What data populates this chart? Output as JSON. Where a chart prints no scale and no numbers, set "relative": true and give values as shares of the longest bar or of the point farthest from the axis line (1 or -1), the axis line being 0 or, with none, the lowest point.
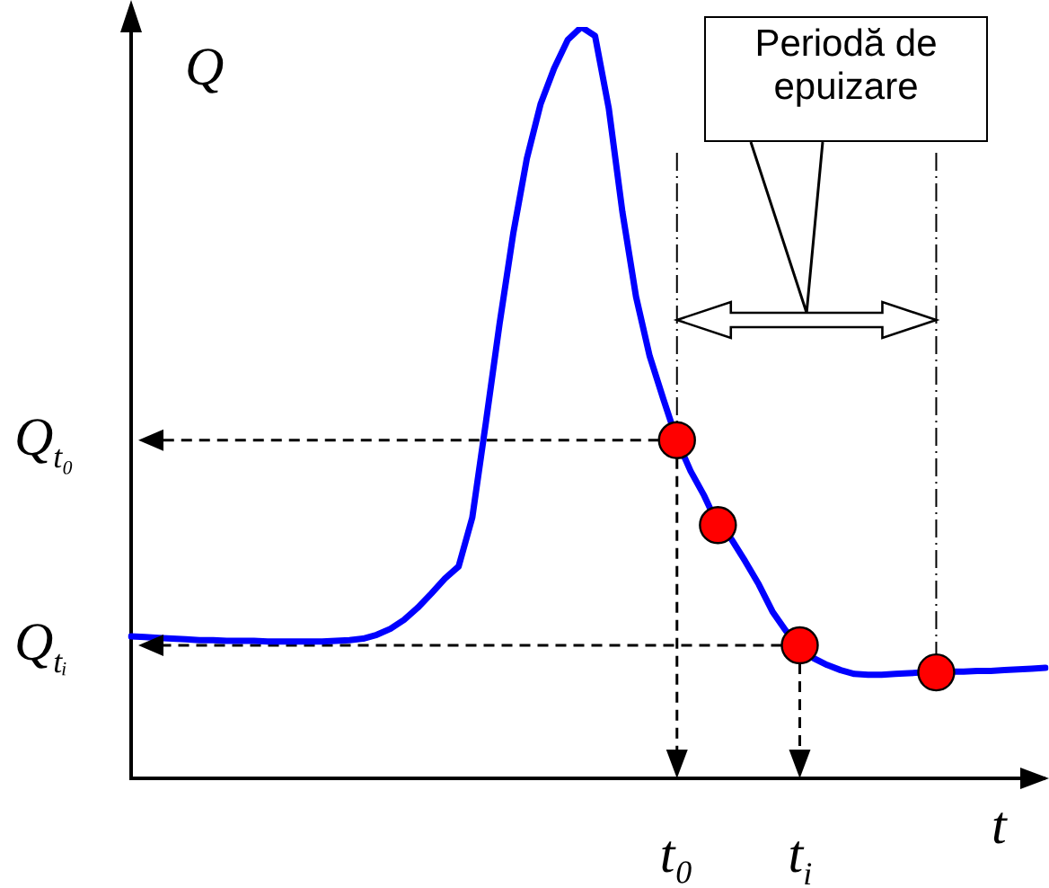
{
  "chart_data": {
    "type": "line",
    "relative": true,
    "ylabel": "Q",
    "xlabel": "t",
    "categories": [
      null,
      null,
      null,
      null,
      null,
      null,
      null,
      null,
      null,
      null,
      null,
      null,
      null,
      null,
      null,
      null,
      null,
      null,
      null,
      null,
      null,
      null,
      null,
      null,
      null,
      null,
      null,
      null,
      null,
      null,
      null,
      null,
      null,
      null,
      null,
      null,
      null,
      null,
      null,
      null,
      null,
      null,
      null,
      null,
      null,
      null,
      null,
      null,
      null,
      null,
      null,
      null,
      null,
      null,
      null,
      null,
      null,
      null,
      null,
      null,
      null,
      null,
      null,
      null,
      null,
      null,
      null,
      null
    ],
    "series": [
      {
        "color": "#0000ff",
        "values": [
          0.189,
          0.188,
          0.187,
          0.186,
          0.185,
          0.184,
          0.184,
          0.183,
          0.183,
          0.183,
          0.182,
          0.182,
          0.182,
          0.182,
          0.182,
          0.183,
          0.184,
          0.186,
          0.191,
          0.199,
          0.211,
          0.227,
          0.246,
          0.266,
          0.282,
          0.347,
          0.474,
          0.605,
          0.725,
          0.825,
          0.897,
          0.945,
          0.983,
          1,
          0.988,
          0.892,
          0.754,
          0.641,
          0.562,
          0.505,
          0.45,
          0.409,
          0.376,
          0.337,
          0.318,
          0.289,
          0.258,
          0.222,
          0.196,
          0.177,
          0.16,
          0.151,
          0.144,
          0.139,
          0.138,
          0.138,
          0.139,
          0.14,
          0.141,
          0.141,
          0.142,
          0.142,
          0.143,
          0.143,
          0.144,
          0.145,
          0.146,
          0.147
        ]
      }
    ],
    "ref_lines": [
      {
        "axis": "y",
        "value": 0.45,
        "label": "Q$_{t₀}$",
        "line_style": "dashed"
      },
      {
        "axis": "y",
        "value": 0.177,
        "label": "Q$_{tᵢ}$",
        "line_style": "dashed"
      }
    ],
    "annotations": [
      "Periodă de epuizare",
      "t₀",
      "t$_{i}$"
    ]
  }
}
